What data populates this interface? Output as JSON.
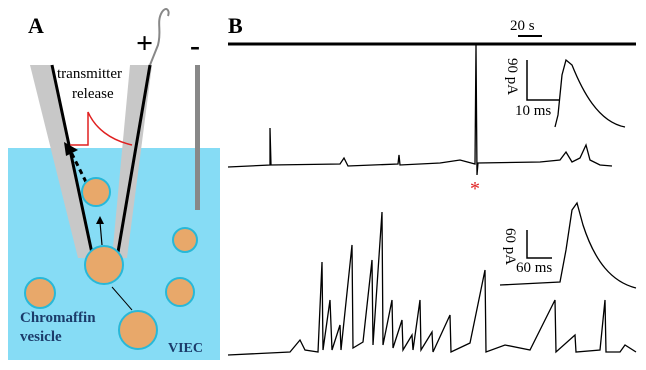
{
  "panel_a": {
    "label": "A",
    "plus": "+",
    "minus": "-",
    "release": [
      "transmitter",
      "release"
    ],
    "vesicle": [
      "Chromaffin",
      "vesicle"
    ],
    "medium": "VIEC"
  },
  "panel_b": {
    "label": "B",
    "time_scale": "20 s",
    "marker": "*",
    "inset_1": {
      "y_scale": "90 pA",
      "x_scale": "10 ms"
    },
    "inset_2": {
      "y_scale": "60 pA",
      "x_scale": "60 ms"
    }
  }
}
